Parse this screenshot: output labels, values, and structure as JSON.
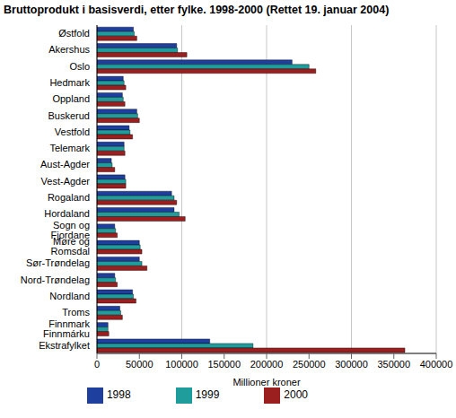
{
  "chart_data": {
    "type": "bar",
    "orientation": "horizontal",
    "title": "Bruttoprodukt i basisverdi, etter fylke. 1998-2000 (Rettet 19. januar 2004)",
    "x_label": "Millioner kroner",
    "categories": [
      "Østfold",
      "Akershus",
      "Oslo",
      "Hedmark",
      "Oppland",
      "Buskerud",
      "Vestfold",
      "Telemark",
      "Aust-Agder",
      "Vest-Agder",
      "Rogaland",
      "Hordaland",
      "Sogn og Fjordane",
      "Møre og Romsdal",
      "Sør-Trøndelag",
      "Nord-Trøndelag",
      "Nordland",
      "Troms",
      "Finnmark Finnmárku",
      "Ekstrafylket"
    ],
    "series": [
      {
        "name": "1998",
        "color": "#1f3f9f",
        "values": [
          43000,
          94000,
          230000,
          31000,
          30000,
          47000,
          38000,
          32000,
          17000,
          33000,
          88000,
          91000,
          21000,
          50000,
          50000,
          21000,
          42000,
          27000,
          13000,
          133000
        ]
      },
      {
        "name": "1999",
        "color": "#1f9c9c",
        "values": [
          44000,
          95000,
          250000,
          32000,
          31000,
          48000,
          39000,
          32000,
          18000,
          34000,
          91000,
          97000,
          22000,
          51000,
          53000,
          22000,
          43000,
          28000,
          13000,
          184000
        ]
      },
      {
        "name": "2000",
        "color": "#9c1f1f",
        "values": [
          47000,
          106000,
          258000,
          34000,
          33000,
          50000,
          42000,
          33000,
          21000,
          34000,
          94000,
          104000,
          24000,
          53000,
          59000,
          24000,
          46000,
          30000,
          14000,
          363000
        ]
      }
    ],
    "xlim": [
      0,
      400000
    ],
    "xticks": [
      0,
      50000,
      100000,
      150000,
      200000,
      250000,
      300000,
      350000,
      400000
    ],
    "grid": true,
    "legend": "bottom"
  }
}
